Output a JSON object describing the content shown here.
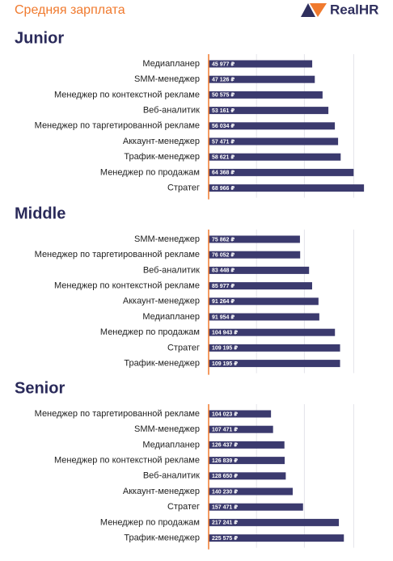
{
  "header": {
    "title": "Средняя зарплата",
    "logo": "RealHR"
  },
  "chart_data": [
    {
      "type": "bar",
      "orientation": "horizontal",
      "title": "Junior",
      "color": "#3b3a6e",
      "categories": [
        "Медиапланер",
        "SMM-менеджер",
        "Менеджер по контекстной рекламе",
        "Веб-аналитик",
        "Менеджер по таргетированной рекламе",
        "Аккаунт-менеджер",
        "Трафик-менеджер",
        "Менеджер по продажам",
        "Стратег"
      ],
      "values": [
        45977,
        47126,
        50575,
        53161,
        56034,
        57471,
        58621,
        64368,
        68966
      ],
      "value_labels": [
        "45 977 ₽",
        "47 126 ₽",
        "50 575 ₽",
        "53 161 ₽",
        "56 034 ₽",
        "57 471 ₽",
        "58 621 ₽",
        "64 368 ₽",
        "68 966 ₽"
      ],
      "xlim": [
        0,
        70000
      ]
    },
    {
      "type": "bar",
      "orientation": "horizontal",
      "title": "Middle",
      "color": "#3b3a6e",
      "categories": [
        "SMM-менеджер",
        "Менеджер по таргетированной рекламе",
        "Веб-аналитик",
        "Менеджер по контекстной рекламе",
        "Аккаунт-менеджер",
        "Медиапланер",
        "Менеджер по продажам",
        "Стратег",
        "Трафик-менеджер"
      ],
      "values": [
        75862,
        76052,
        83448,
        85977,
        91264,
        91954,
        104943,
        109195,
        109195
      ],
      "value_labels": [
        "75 862 ₽",
        "76 052 ₽",
        "83 448 ₽",
        "85 977 ₽",
        "91 264 ₽",
        "91 954 ₽",
        "104 943 ₽",
        "109 195 ₽",
        "109 195 ₽"
      ],
      "xlim": [
        0,
        131000
      ]
    },
    {
      "type": "bar",
      "orientation": "horizontal",
      "title": "Senior",
      "color": "#3b3a6e",
      "categories": [
        "Менеджер по таргетированной рекламе",
        "SMM-менеджер",
        "Медиапланер",
        "Менеджер по контекстной рекламе",
        "Веб-аналитик",
        "Аккаунт-менеджер",
        "Стратег",
        "Менеджер по продажам",
        "Трафик-менеджер"
      ],
      "values": [
        104023,
        107471,
        126437,
        126839,
        128650,
        140230,
        157471,
        217241,
        225575
      ],
      "value_labels": [
        "104 023 ₽",
        "107 471 ₽",
        "126 437 ₽",
        "126 839 ₽",
        "128 650 ₽",
        "140 230 ₽",
        "157 471 ₽",
        "217 241 ₽",
        "225 575 ₽"
      ],
      "xlim": [
        0,
        263000
      ]
    }
  ]
}
